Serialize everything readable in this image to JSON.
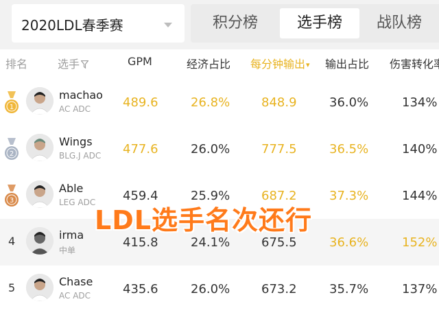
{
  "season": "2020LDL春季赛",
  "tabs": [
    "积分榜",
    "选手榜",
    "战队榜"
  ],
  "active_tab": 1,
  "headers": {
    "rank": "排名",
    "player": "选手",
    "gpm": "GPM",
    "econ_share": "经济占比",
    "dpm": "每分钟输出",
    "dmg_share": "输出占比",
    "dmg_conv": "伤害转化率"
  },
  "rows": [
    {
      "rank": "1",
      "medal": "gold",
      "name": "machao",
      "team": "AC ADC",
      "gpm": "489.6",
      "econ_share": "26.8%",
      "dpm": "848.9",
      "dmg_share": "36.0%",
      "dmg_conv": "134%"
    },
    {
      "rank": "2",
      "medal": "silver",
      "name": "Wings",
      "team": "BLG.J ADC",
      "gpm": "477.6",
      "econ_share": "26.0%",
      "dpm": "777.5",
      "dmg_share": "36.5%",
      "dmg_conv": "140%"
    },
    {
      "rank": "3",
      "medal": "bronze",
      "name": "Able",
      "team": "LEG ADC",
      "gpm": "459.4",
      "econ_share": "25.9%",
      "dpm": "687.2",
      "dmg_share": "37.3%",
      "dmg_conv": "144%"
    },
    {
      "rank": "4",
      "medal": "",
      "name": "irma",
      "team": "中单",
      "gpm": "415.8",
      "econ_share": "24.1%",
      "dpm": "675.5",
      "dmg_share": "36.6%",
      "dmg_conv": "152%"
    },
    {
      "rank": "5",
      "medal": "",
      "name": "Chase",
      "team": "AC ADC",
      "gpm": "435.6",
      "econ_share": "26.0%",
      "dpm": "673.2",
      "dmg_share": "35.7%",
      "dmg_conv": "137%"
    }
  ],
  "overlay_text": "LDL选手名次还行",
  "colors": {
    "gold_text": "#e8b320",
    "overlay": "#ff7a1a",
    "medal_gold": "#f0b73a",
    "medal_silver": "#aab4c4",
    "medal_bronze": "#d98a4a"
  }
}
